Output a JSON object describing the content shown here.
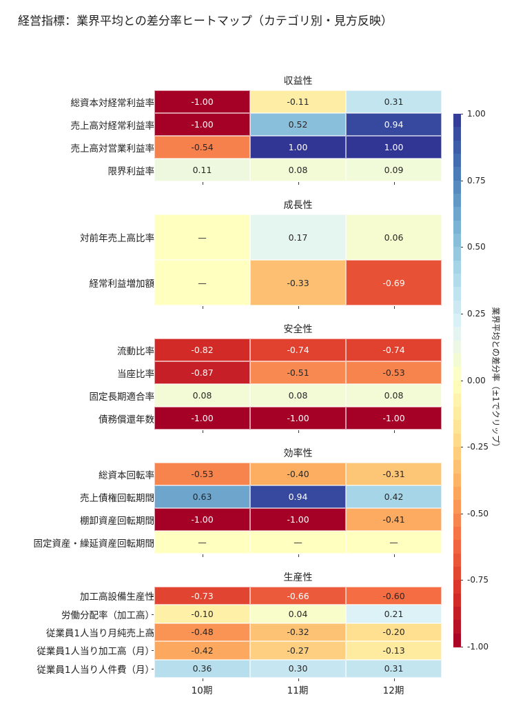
{
  "chart_data": {
    "type": "heatmap",
    "title": "経営指標：業界平均との差分率ヒートマップ（カテゴリ別・見方反映）",
    "columns": [
      "10期",
      "11期",
      "12期"
    ],
    "colormap": "RdYlBu",
    "vmin": -1,
    "vmax": 1,
    "missing_label": "—",
    "colorbar": {
      "label": "業界平均との差分率（±1でクリップ）",
      "ticks": [
        "1.00",
        "0.75",
        "0.50",
        "0.25",
        "0.00",
        "-0.25",
        "-0.50",
        "-0.75",
        "-1.00"
      ]
    },
    "panels": [
      {
        "title": "収益性",
        "rows": [
          {
            "label": "総資本対経常利益率",
            "values": [
              -1.0,
              -0.11,
              0.31
            ]
          },
          {
            "label": "売上高対経常利益率",
            "values": [
              -1.0,
              0.52,
              0.94
            ]
          },
          {
            "label": "売上高対営業利益率",
            "values": [
              -0.54,
              1.0,
              1.0
            ]
          },
          {
            "label": "限界利益率",
            "values": [
              0.11,
              0.08,
              0.09
            ]
          }
        ]
      },
      {
        "title": "成長性",
        "rows": [
          {
            "label": "対前年売上高比率",
            "values": [
              null,
              0.17,
              0.06
            ]
          },
          {
            "label": "経常利益増加額",
            "values": [
              null,
              -0.33,
              -0.69
            ]
          }
        ]
      },
      {
        "title": "安全性",
        "rows": [
          {
            "label": "流動比率",
            "values": [
              -0.82,
              -0.74,
              -0.74
            ]
          },
          {
            "label": "当座比率",
            "values": [
              -0.87,
              -0.51,
              -0.53
            ]
          },
          {
            "label": "固定長期適合率",
            "values": [
              0.08,
              0.08,
              0.08
            ]
          },
          {
            "label": "債務償還年数",
            "values": [
              -1.0,
              -1.0,
              -1.0
            ]
          }
        ]
      },
      {
        "title": "効率性",
        "rows": [
          {
            "label": "総資本回転率",
            "values": [
              -0.53,
              -0.4,
              -0.31
            ]
          },
          {
            "label": "売上債権回転期間",
            "values": [
              0.63,
              0.94,
              0.42
            ]
          },
          {
            "label": "棚卸資産回転期間",
            "values": [
              -1.0,
              -1.0,
              -0.41
            ]
          },
          {
            "label": "固定資産・繰延資産回転期間",
            "values": [
              null,
              null,
              null
            ]
          }
        ]
      },
      {
        "title": "生産性",
        "rows": [
          {
            "label": "加工高設備生産性",
            "values": [
              -0.73,
              -0.66,
              -0.6
            ]
          },
          {
            "label": "労働分配率（加工高）",
            "values": [
              -0.1,
              0.04,
              0.21
            ]
          },
          {
            "label": "従業員1人当り月純売上高",
            "values": [
              -0.48,
              -0.32,
              -0.2
            ]
          },
          {
            "label": "従業員1人当り加工高（月）",
            "values": [
              -0.42,
              -0.27,
              -0.13
            ]
          },
          {
            "label": "従業員1人当り人件費（月）",
            "values": [
              0.36,
              0.3,
              0.31
            ]
          }
        ]
      }
    ]
  }
}
